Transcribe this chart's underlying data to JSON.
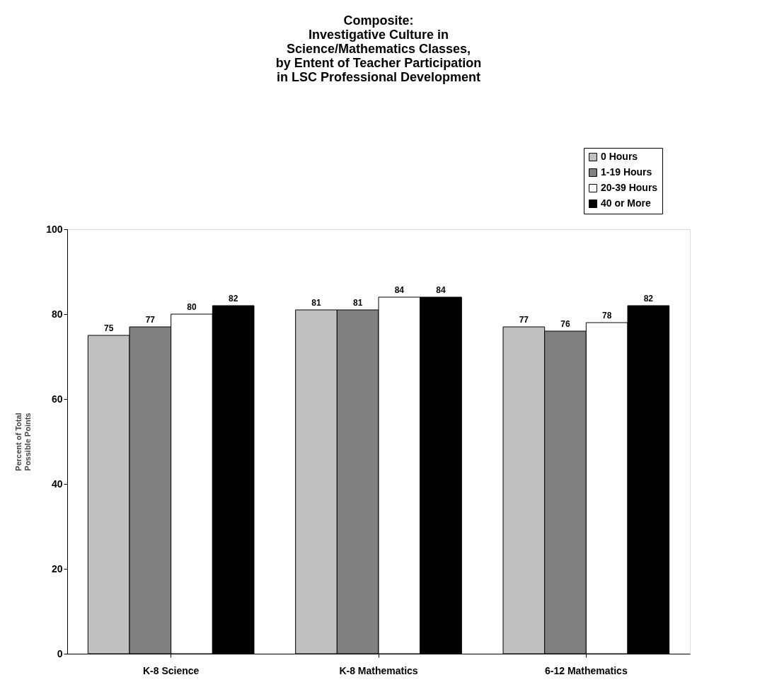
{
  "chart_data": {
    "type": "bar",
    "title": "Composite:\nInvestigative Culture in\nScience/Mathematics Classes,\nby Entent of Teacher Participation\nin LSC Professional Development",
    "ylabel": "Percent of Total\nPossible Points",
    "categories": [
      "K-8 Science",
      "K-8 Mathematics",
      "6-12 Mathematics"
    ],
    "series": [
      {
        "name": "0 Hours",
        "color": "#c0c0c0",
        "values": [
          75,
          81,
          77
        ]
      },
      {
        "name": "1-19 Hours",
        "color": "#808080",
        "values": [
          77,
          81,
          76
        ]
      },
      {
        "name": "20-39 Hours",
        "color": "#ffffff",
        "values": [
          80,
          84,
          78
        ]
      },
      {
        "name": "40 or More",
        "color": "#000000",
        "values": [
          82,
          84,
          82
        ]
      }
    ],
    "ylim": [
      0,
      100
    ],
    "yticks": [
      0,
      20,
      40,
      60,
      80,
      100
    ],
    "data_labels": true,
    "grid": false,
    "legend": "top right"
  }
}
